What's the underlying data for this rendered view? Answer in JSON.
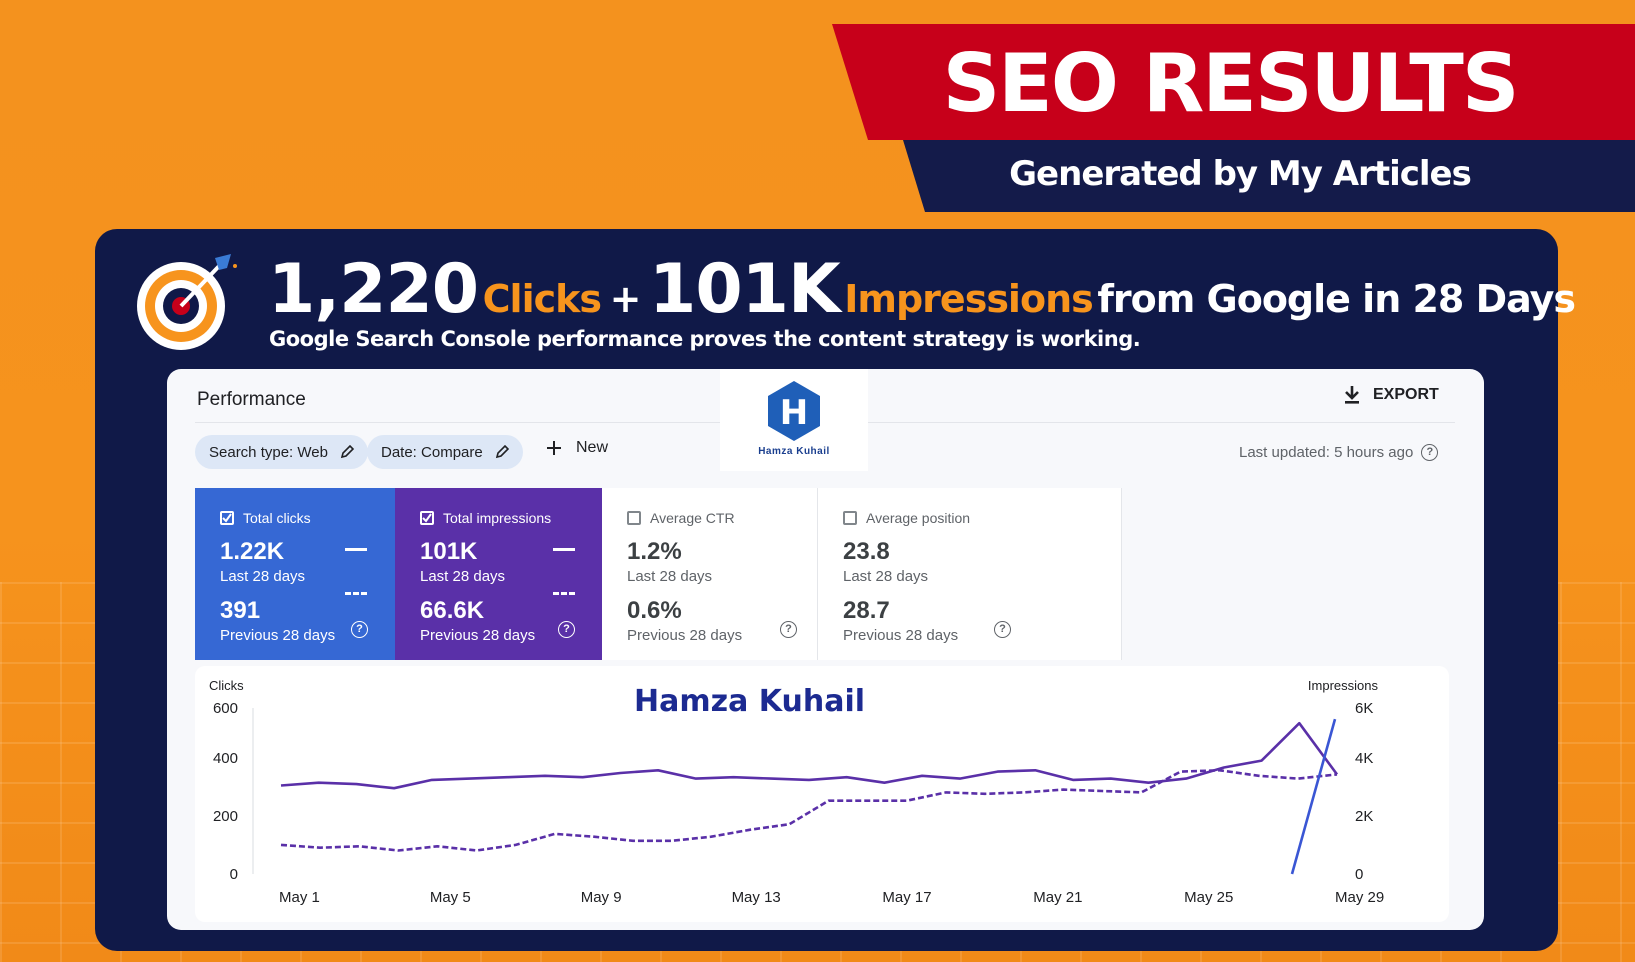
{
  "banner": {
    "title": "SEO RESULTS",
    "subtitle": "Generated by My Articles"
  },
  "headline": {
    "clicks_value": "1,220",
    "clicks_label": "Clicks",
    "plus": "+",
    "impressions_value": "101K",
    "impressions_label": "Impressions",
    "suffix": "from Google in 28 Days",
    "tagline": "Google Search Console performance proves the content strategy is working."
  },
  "panel": {
    "title": "Performance",
    "export_label": "EXPORT",
    "filters": {
      "search_type": "Search type: Web",
      "date": "Date: Compare",
      "new_label": "New"
    },
    "last_updated": "Last updated: 5 hours ago",
    "logo_text": "Hamza Kuhail",
    "logo_letter": "H"
  },
  "metrics": [
    {
      "label": "Total clicks",
      "current": "1.22K",
      "current_period": "Last 28 days",
      "previous": "391",
      "previous_period": "Previous 28 days",
      "checked": true,
      "color": "#3668d4"
    },
    {
      "label": "Total impressions",
      "current": "101K",
      "current_period": "Last 28 days",
      "previous": "66.6K",
      "previous_period": "Previous 28 days",
      "checked": true,
      "color": "#5a30a8"
    },
    {
      "label": "Average CTR",
      "current": "1.2%",
      "current_period": "Last 28 days",
      "previous": "0.6%",
      "previous_period": "Previous 28 days",
      "checked": false
    },
    {
      "label": "Average position",
      "current": "23.8",
      "current_period": "Last 28 days",
      "previous": "28.7",
      "previous_period": "Previous 28 days",
      "checked": false
    }
  ],
  "chart_data": {
    "type": "line",
    "watermark": "Hamza Kuhail",
    "left_axis": {
      "label": "Clicks",
      "ticks": [
        "0",
        "200",
        "400",
        "600"
      ],
      "range": [
        0,
        600
      ]
    },
    "right_axis": {
      "label": "Impressions",
      "ticks": [
        "0",
        "2K",
        "4K",
        "6K"
      ],
      "range": [
        0,
        6000
      ]
    },
    "x_labels": [
      "May 1",
      "May 5",
      "May 9",
      "May 13",
      "May 17",
      "May 21",
      "May 25",
      "May 29"
    ],
    "grid": false,
    "series": [
      {
        "axis": "right",
        "style": "solid",
        "color": "#5a30a8",
        "values": [
          3200,
          3300,
          3250,
          3100,
          3400,
          3450,
          3500,
          3550,
          3500,
          3650,
          3750,
          3450,
          3500,
          3450,
          3400,
          3500,
          3300,
          3550,
          3450,
          3700,
          3750,
          3400,
          3450,
          3300,
          3450,
          3850,
          4100,
          5450,
          3600
        ]
      },
      {
        "axis": "right",
        "style": "dashed",
        "color": "#5a30a8",
        "values": [
          1050,
          950,
          1000,
          850,
          1000,
          850,
          1050,
          1450,
          1350,
          1200,
          1200,
          1350,
          1600,
          1800,
          2650,
          2650,
          2650,
          2950,
          2900,
          2950,
          3050,
          3000,
          2950,
          3700,
          3750,
          3550,
          3450,
          3600
        ]
      },
      {
        "axis": "left",
        "style": "solid",
        "color": "#3a56d4",
        "values": [
          0,
          560
        ]
      }
    ]
  }
}
